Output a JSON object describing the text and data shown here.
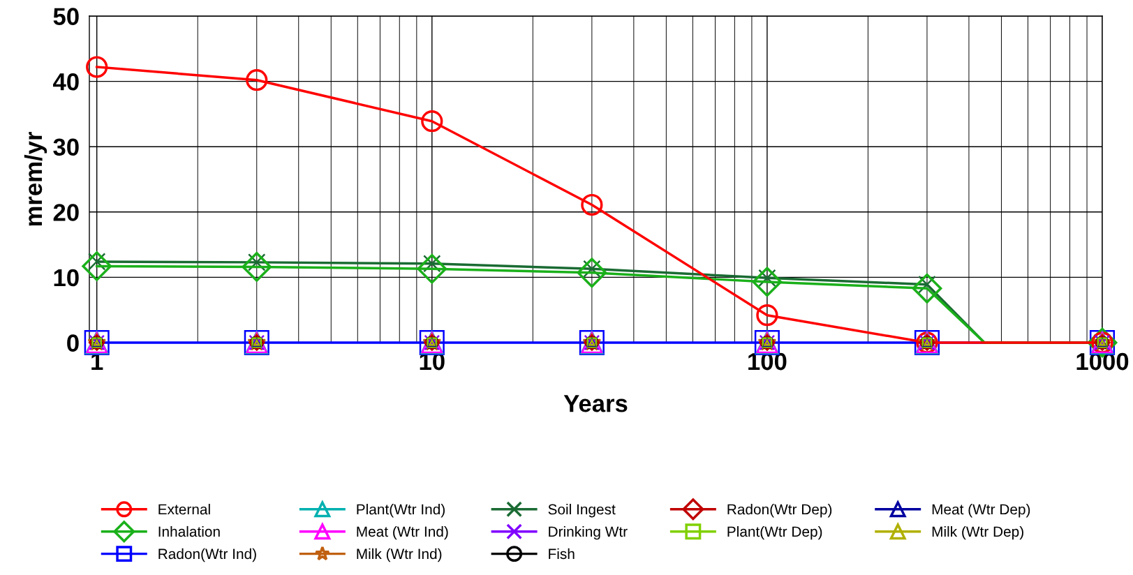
{
  "chart_data": {
    "type": "line",
    "xlabel": "Years",
    "ylabel": "mrem/yr",
    "log": "x",
    "xlim": [
      0.95,
      1000
    ],
    "xticks": [
      1,
      10,
      100,
      1000
    ],
    "ylim": [
      0,
      50
    ],
    "yticks": [
      0,
      10,
      20,
      30,
      40,
      50
    ],
    "grid": true,
    "legend": "bottom",
    "x": [
      1,
      3,
      10,
      30,
      100,
      300,
      1000
    ],
    "series": [
      {
        "name": "External",
        "color": "#ff0000",
        "marker": "circle",
        "values": [
          42.2,
          40.2,
          33.9,
          21.1,
          4.2,
          0,
          0
        ]
      },
      {
        "name": "Inhalation",
        "color": "#1ab01a",
        "marker": "diamond",
        "x": [
          1,
          3,
          10,
          30,
          100,
          300,
          445,
          1000
        ],
        "values": [
          11.7,
          11.6,
          11.3,
          10.7,
          9.3,
          8.3,
          0,
          0
        ]
      },
      {
        "name": "Radon(Wtr Ind)",
        "color": "#0000ff",
        "marker": "square",
        "values": [
          0,
          0,
          0,
          0,
          0,
          0,
          0
        ]
      },
      {
        "name": "Plant(Wtr Ind)",
        "type": "scatter",
        "color": "#00b0b0",
        "marker": "triangle",
        "values": [
          0,
          0,
          0,
          0,
          0,
          0,
          0
        ]
      },
      {
        "name": "Meat (Wtr Ind)",
        "type": "scatter",
        "color": "#ff00ff",
        "marker": "triangle",
        "values": [
          0,
          0,
          0,
          0,
          0,
          0,
          0
        ]
      },
      {
        "name": "Milk (Wtr Ind)",
        "type": "scatter",
        "color": "#c06010",
        "marker": "star",
        "values": [
          0,
          0,
          0,
          0,
          0,
          0,
          0
        ]
      },
      {
        "name": "Soil Ingest",
        "color": "#1a6b33",
        "marker": "cross",
        "x": [
          1,
          3,
          10,
          30,
          100,
          300,
          445,
          1000
        ],
        "values": [
          12.4,
          12.3,
          12.1,
          11.3,
          9.9,
          8.9,
          0,
          0
        ]
      },
      {
        "name": "Drinking Wtr",
        "type": "scatter",
        "color": "#8000ff",
        "marker": "cross",
        "values": [
          0,
          0,
          0,
          0,
          0,
          0,
          0
        ]
      },
      {
        "name": "Fish",
        "type": "scatter",
        "color": "#000000",
        "marker": "circle",
        "values": [
          0,
          0,
          0,
          0,
          0,
          0,
          0
        ]
      },
      {
        "name": "Radon(Wtr Dep)",
        "type": "scatter",
        "color": "#c00000",
        "marker": "diamond",
        "values": [
          0,
          0,
          0,
          0,
          0,
          0,
          0
        ]
      },
      {
        "name": "Plant(Wtr Dep)",
        "type": "scatter",
        "color": "#80d000",
        "marker": "square",
        "values": [
          0,
          0,
          0,
          0,
          0,
          0,
          0
        ]
      },
      {
        "name": "Meat (Wtr Dep)",
        "type": "scatter",
        "color": "#0000a0",
        "marker": "triangle",
        "values": [
          0,
          0,
          0,
          0,
          0,
          0,
          0
        ]
      },
      {
        "name": "Milk (Wtr Dep)",
        "type": "scatter",
        "color": "#b0b000",
        "marker": "triangle",
        "values": [
          0,
          0,
          0,
          0,
          0,
          0,
          0
        ]
      }
    ]
  }
}
